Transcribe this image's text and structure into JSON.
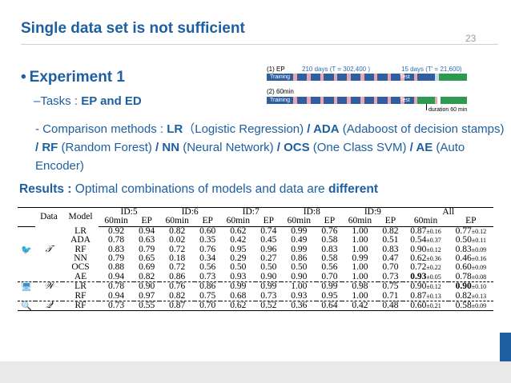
{
  "slide": {
    "title": "Single data set is not sufficient",
    "number": "23",
    "bullet": "Experiment 1",
    "tasks_prefix": "–Tasks : ",
    "tasks_value": "EP and ED",
    "methods": [
      {
        "text": "- Comparison methods : ",
        "bold": false
      },
      {
        "text": "LR",
        "bold": true
      },
      {
        "text": "（Logistic Regression) ",
        "bold": false
      },
      {
        "text": "/ ADA",
        "bold": true
      },
      {
        "text": " (Adaboost of decision stamps) ",
        "bold": false
      },
      {
        "text": "/ RF",
        "bold": true
      },
      {
        "text": " (Random Forest) ",
        "bold": false
      },
      {
        "text": "/ NN",
        "bold": true
      },
      {
        "text": " (Neural Network) ",
        "bold": false
      },
      {
        "text": "/ OCS",
        "bold": true
      },
      {
        "text": " (One Class SVM) ",
        "bold": false
      },
      {
        "text": "/ AE",
        "bold": true
      },
      {
        "text": " (Auto Encoder)",
        "bold": false
      }
    ],
    "results_label": "Results :",
    "results_text": " Optimal combinations of models and data are ",
    "results_emph": "different"
  },
  "diagram": {
    "row1_label": "(1) EP",
    "row1_train_days": "210 days (T = 302,400 )",
    "row1_test_days": "15 days (T' = 21,600)",
    "row2_label": "(2) 60min",
    "training": "Training",
    "test": "Test",
    "duration": "duration 60 min",
    "colors": {
      "train": "#2f5f9e",
      "pink": "#e9a7b2",
      "test": "#2e9a4f",
      "light": "#cfd8e6"
    }
  },
  "table": {
    "headers": {
      "data": "Data",
      "model": "Model",
      "ids": [
        "ID:5",
        "ID:6",
        "ID:7",
        "ID:8",
        "ID:9",
        "All"
      ],
      "sub": [
        "60min",
        "EP",
        "60min",
        "EP",
        "60min",
        "EP",
        "60min",
        "EP",
        "60min",
        "EP",
        "60min",
        "EP"
      ]
    },
    "groups": [
      {
        "icon": "twitter-icon",
        "symbol": "𝒯",
        "rows": [
          {
            "model": "LR",
            "vals": [
              "0.92",
              "0.94",
              "0.82",
              "0.60",
              "0.62",
              "0.74",
              "0.99",
              "0.76",
              "1.00",
              "0.82"
            ],
            "bold": [
              8
            ],
            "all": [
              [
                "0.87",
                "0.16"
              ],
              [
                "0.77",
                "0.12"
              ]
            ],
            "allbold": []
          },
          {
            "model": "ADA",
            "vals": [
              "0.78",
              "0.63",
              "0.02",
              "0.35",
              "0.42",
              "0.45",
              "0.49",
              "0.58",
              "1.00",
              "0.51"
            ],
            "bold": [
              8
            ],
            "all": [
              [
                "0.54",
                "0.37"
              ],
              [
                "0.50",
                "0.11"
              ]
            ],
            "allbold": []
          },
          {
            "model": "RF",
            "vals": [
              "0.83",
              "0.79",
              "0.72",
              "0.76",
              "0.95",
              "0.96",
              "0.99",
              "0.83",
              "1.00",
              "0.83"
            ],
            "bold": [
              8,
              9
            ],
            "all": [
              [
                "0.90",
                "0.12"
              ],
              [
                "0.83",
                "0.09"
              ]
            ],
            "allbold": []
          },
          {
            "model": "NN",
            "vals": [
              "0.79",
              "0.65",
              "0.18",
              "0.34",
              "0.29",
              "0.27",
              "0.86",
              "0.58",
              "0.99",
              "0.47"
            ],
            "bold": [],
            "all": [
              [
                "0.62",
                "0.36"
              ],
              [
                "0.46",
                "0.16"
              ]
            ],
            "allbold": []
          },
          {
            "model": "OCS",
            "vals": [
              "0.88",
              "0.69",
              "0.72",
              "0.56",
              "0.50",
              "0.50",
              "0.50",
              "0.56",
              "1.00",
              "0.70"
            ],
            "bold": [
              8
            ],
            "all": [
              [
                "0.72",
                "0.22"
              ],
              [
                "0.60",
                "0.09"
              ]
            ],
            "allbold": []
          },
          {
            "model": "AE",
            "vals": [
              "0.94",
              "0.82",
              "0.86",
              "0.73",
              "0.93",
              "0.90",
              "0.90",
              "0.70",
              "1.00",
              "0.73"
            ],
            "bold": [
              0,
              8
            ],
            "all": [
              [
                "0.93",
                "0.05"
              ],
              [
                "0.78",
                "0.08"
              ]
            ],
            "allbold": [
              0
            ]
          }
        ]
      },
      {
        "icon": "computer-icon",
        "symbol": "𝒲",
        "rows": [
          {
            "model": "LR",
            "vals": [
              "0.78",
              "0.90",
              "0.76",
              "0.86",
              "0.99",
              "0.99",
              "1.00",
              "0.99",
              "0.98",
              "0.75"
            ],
            "bold": [
              3,
              4,
              5,
              6,
              7
            ],
            "all": [
              [
                "0.90",
                "0.12"
              ],
              [
                "0.90",
                "0.10"
              ]
            ],
            "allbold": [
              1
            ]
          },
          {
            "model": "RF",
            "vals": [
              "0.94",
              "0.97",
              "0.82",
              "0.75",
              "0.68",
              "0.73",
              "0.93",
              "0.95",
              "1.00",
              "0.71"
            ],
            "bold": [
              0,
              1,
              8
            ],
            "all": [
              [
                "0.87",
                "0.13"
              ],
              [
                "0.82",
                "0.13"
              ]
            ],
            "allbold": []
          }
        ]
      },
      {
        "icon": "search-icon",
        "symbol": "𝒬",
        "rows": [
          {
            "model": "RF",
            "vals": [
              "0.73",
              "0.55",
              "0.87",
              "0.70",
              "0.62",
              "0.52",
              "0.36",
              "0.64",
              "0.42",
              "0.48"
            ],
            "bold": [
              2
            ],
            "all": [
              [
                "0.60",
                "0.21"
              ],
              [
                "0.58",
                "0.09"
              ]
            ],
            "allbold": []
          }
        ]
      }
    ]
  }
}
